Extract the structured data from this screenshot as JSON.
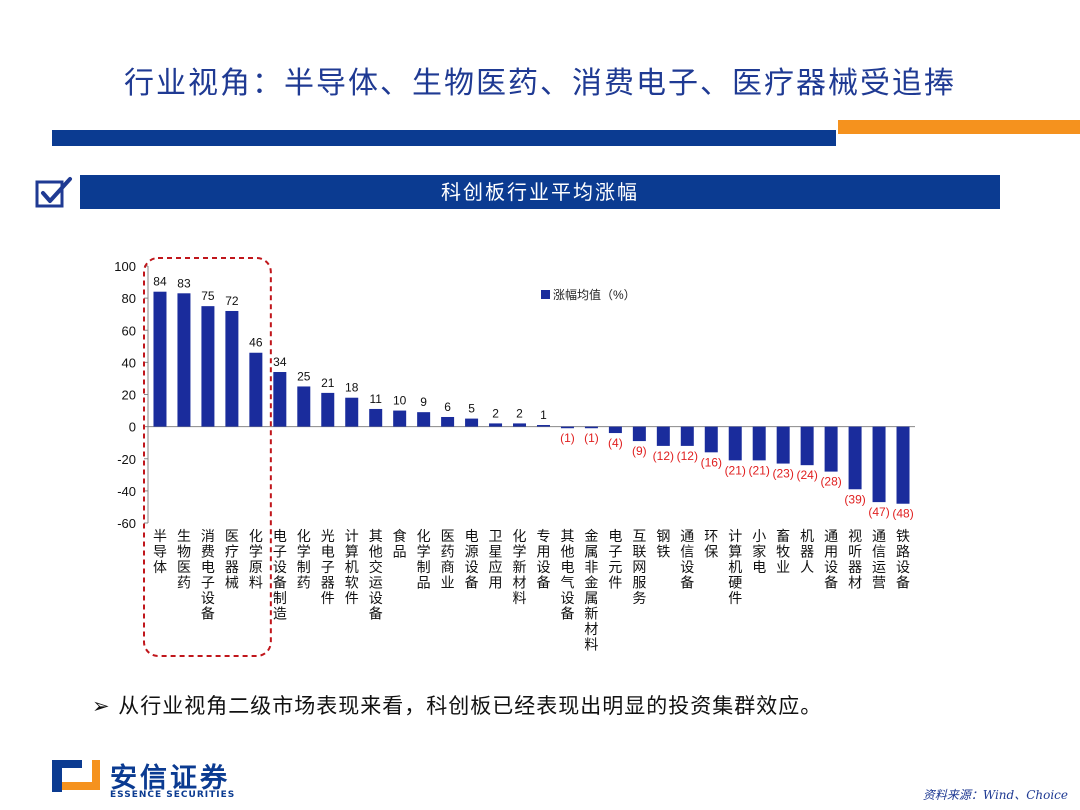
{
  "slide": {
    "title": "行业视角：半导体、生物医药、消费电子、医疗器械受追捧",
    "section_title": "科创板行业平均涨幅",
    "bullet": "从行业视角二级市场表现来看，科创板已经表现出明显的投资集群效应。",
    "bullet_marker": "➢",
    "source": "资料来源：Wind、Choice"
  },
  "logo": {
    "name": "安信证券",
    "sub": "ESSENCE SECURITIES"
  },
  "colors": {
    "brand_blue": "#0b3b91",
    "bar_blue": "#1a2c9c",
    "accent_orange": "#f5921e",
    "negative_label": "#e02020",
    "highlight_box": "#c0161b"
  },
  "chart_data": {
    "type": "bar",
    "ylim": [
      -60,
      100
    ],
    "yticks": [
      "100",
      "80",
      "60",
      "40",
      "20",
      "0",
      "-20",
      "-40",
      "-60"
    ],
    "legend": {
      "label": "涨幅均值（%）",
      "placement": "top-center"
    },
    "categories": [
      "半导体",
      "生物医药",
      "消费电子设备",
      "医疗器械",
      "化学原料",
      "电子设备制造",
      "化学制药",
      "光电子器件",
      "计算机软件",
      "其他交运设备",
      "食品",
      "化学制品",
      "医药商业",
      "电源设备",
      "卫星应用",
      "化学新材料",
      "专用设备",
      "其他电气设备",
      "金属非金属新材料",
      "电子元件",
      "互联网服务",
      "钢铁",
      "通信设备",
      "环保",
      "计算机硬件",
      "小家电",
      "畜牧业",
      "机器人",
      "通用设备",
      "视听器材",
      "通信运营",
      "铁路设备"
    ],
    "values": [
      84,
      83,
      75,
      72,
      46,
      34,
      25,
      21,
      18,
      11,
      10,
      9,
      6,
      5,
      2,
      2,
      1,
      -1,
      -1,
      -4,
      -9,
      -12,
      -12,
      -16,
      -21,
      -21,
      -23,
      -24,
      -28,
      -39,
      -47,
      -48
    ],
    "data_labels": [
      "84",
      "83",
      "75",
      "72",
      "46",
      "34",
      "25",
      "21",
      "18",
      "11",
      "10",
      "9",
      "6",
      "5",
      "2",
      "2",
      "1",
      "(1)",
      "(1)",
      "(4)",
      "(9)",
      "(12)",
      "(12)",
      "(16)",
      "(21)",
      "(21)",
      "(23)",
      "(24)",
      "(28)",
      "(39)",
      "(47)",
      "(48)"
    ],
    "highlighted_count": 5
  }
}
